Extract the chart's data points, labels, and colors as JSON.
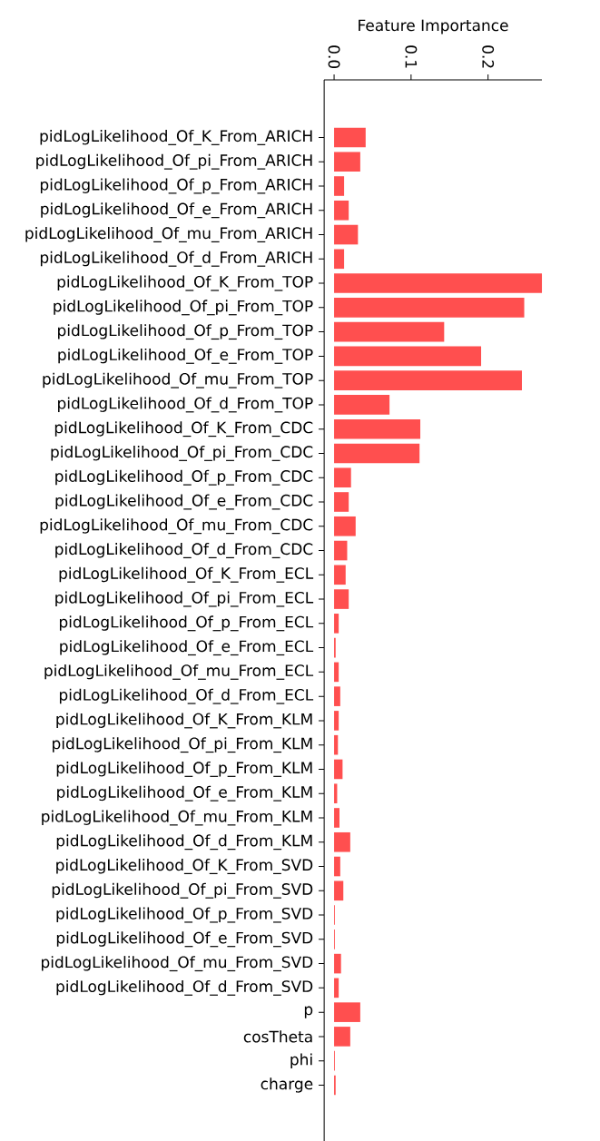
{
  "chart_data": {
    "type": "bar",
    "orientation": "horizontal",
    "xlabel": "Feature Importance",
    "categories": [
      "pidLogLikelihood_Of_K_From_ARICH",
      "pidLogLikelihood_Of_pi_From_ARICH",
      "pidLogLikelihood_Of_p_From_ARICH",
      "pidLogLikelihood_Of_e_From_ARICH",
      "pidLogLikelihood_Of_mu_From_ARICH",
      "pidLogLikelihood_Of_d_From_ARICH",
      "pidLogLikelihood_Of_K_From_TOP",
      "pidLogLikelihood_Of_pi_From_TOP",
      "pidLogLikelihood_Of_p_From_TOP",
      "pidLogLikelihood_Of_e_From_TOP",
      "pidLogLikelihood_Of_mu_From_TOP",
      "pidLogLikelihood_Of_d_From_TOP",
      "pidLogLikelihood_Of_K_From_CDC",
      "pidLogLikelihood_Of_pi_From_CDC",
      "pidLogLikelihood_Of_p_From_CDC",
      "pidLogLikelihood_Of_e_From_CDC",
      "pidLogLikelihood_Of_mu_From_CDC",
      "pidLogLikelihood_Of_d_From_CDC",
      "pidLogLikelihood_Of_K_From_ECL",
      "pidLogLikelihood_Of_pi_From_ECL",
      "pidLogLikelihood_Of_p_From_ECL",
      "pidLogLikelihood_Of_e_From_ECL",
      "pidLogLikelihood_Of_mu_From_ECL",
      "pidLogLikelihood_Of_d_From_ECL",
      "pidLogLikelihood_Of_K_From_KLM",
      "pidLogLikelihood_Of_pi_From_KLM",
      "pidLogLikelihood_Of_p_From_KLM",
      "pidLogLikelihood_Of_e_From_KLM",
      "pidLogLikelihood_Of_mu_From_KLM",
      "pidLogLikelihood_Of_d_From_KLM",
      "pidLogLikelihood_Of_K_From_SVD",
      "pidLogLikelihood_Of_pi_From_SVD",
      "pidLogLikelihood_Of_p_From_SVD",
      "pidLogLikelihood_Of_e_From_SVD",
      "pidLogLikelihood_Of_mu_From_SVD",
      "pidLogLikelihood_Of_d_From_SVD",
      "p",
      "cosTheta",
      "phi",
      "charge"
    ],
    "values": [
      0.041,
      0.034,
      0.013,
      0.019,
      0.031,
      0.013,
      0.27,
      0.247,
      0.143,
      0.191,
      0.244,
      0.072,
      0.112,
      0.111,
      0.022,
      0.019,
      0.028,
      0.017,
      0.015,
      0.019,
      0.006,
      0.002,
      0.006,
      0.008,
      0.006,
      0.005,
      0.011,
      0.004,
      0.007,
      0.021,
      0.008,
      0.012,
      0.001,
      0.001,
      0.009,
      0.006,
      0.034,
      0.021,
      0.001,
      0.002
    ],
    "color": "#ff4f4f",
    "xlim": [
      -0.013,
      0.27
    ],
    "xticks": [
      {
        "value": 0,
        "label": "0.0"
      },
      {
        "value": 0.1,
        "label": "0.1"
      },
      {
        "value": 0.2,
        "label": "0.2"
      }
    ]
  }
}
